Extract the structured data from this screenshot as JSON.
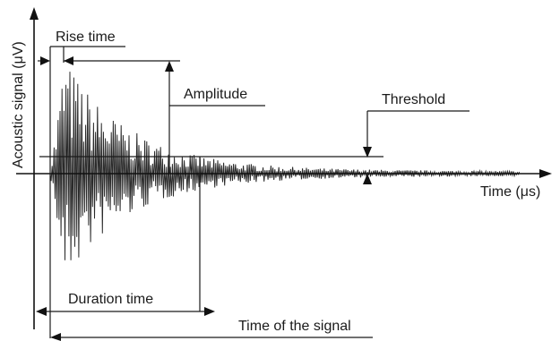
{
  "labels": {
    "y_axis": "Acoustic signal (μV)",
    "x_axis": "Time (μs)",
    "rise_time": "Rise time",
    "amplitude": "Amplitude",
    "threshold": "Threshold",
    "duration_time": "Duration time",
    "time_of_signal": "Time of the signal"
  }
}
